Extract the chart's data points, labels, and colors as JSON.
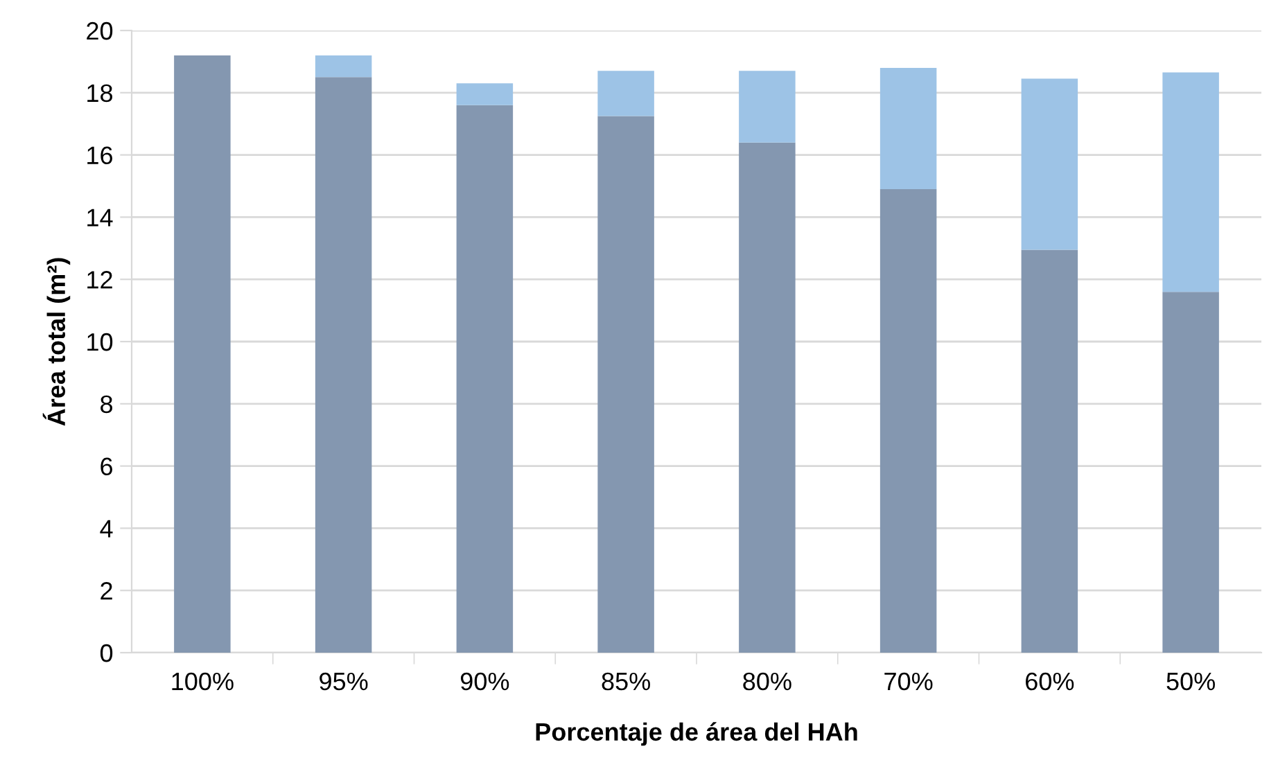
{
  "chart_data": {
    "type": "bar",
    "stacked": true,
    "xlabel": "Porcentaje de área del HAh",
    "ylabel": "Área total (m²)",
    "categories": [
      "100%",
      "95%",
      "90%",
      "85%",
      "80%",
      "70%",
      "60%",
      "50%"
    ],
    "series": [
      {
        "color": "#8497b0",
        "values": [
          19.2,
          18.5,
          17.6,
          17.25,
          16.4,
          14.9,
          12.95,
          11.6
        ]
      },
      {
        "color": "#9dc3e6",
        "values": [
          0,
          0.7,
          0.7,
          1.45,
          2.3,
          3.9,
          5.5,
          7.05
        ]
      }
    ],
    "ylim": [
      0,
      20
    ],
    "yticks": [
      0,
      2,
      4,
      6,
      8,
      10,
      12,
      14,
      16,
      18,
      20
    ],
    "grid": "y"
  }
}
